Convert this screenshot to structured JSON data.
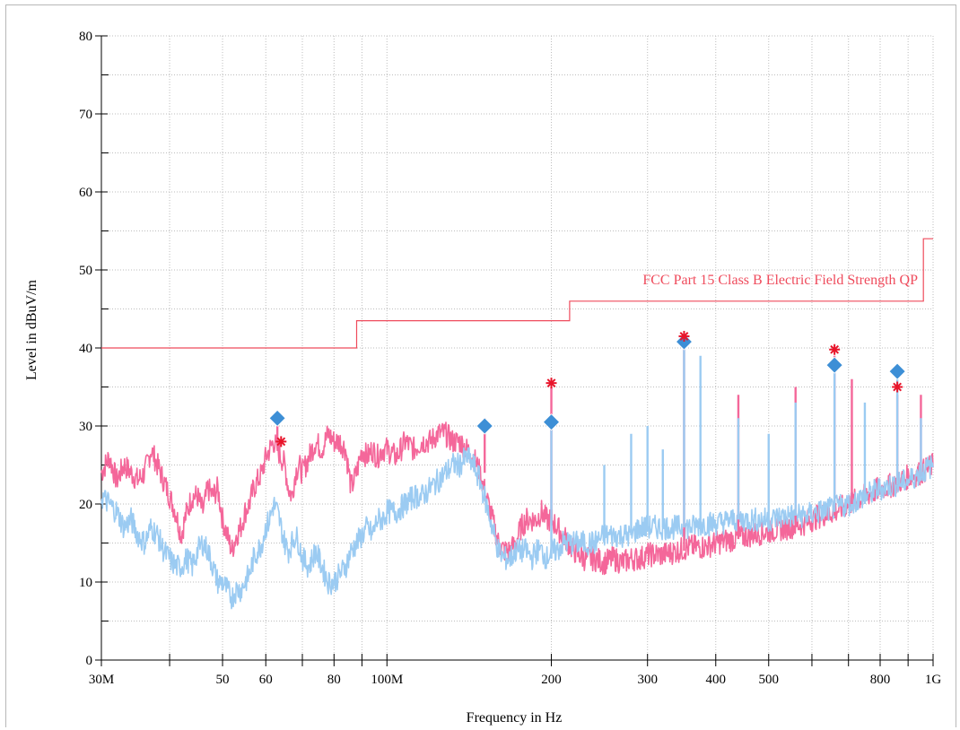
{
  "chart_data": {
    "type": "line",
    "xlabel": "Frequency in Hz",
    "ylabel": "Level in dBuV/m",
    "x_scale": "log",
    "xlim": [
      30000000,
      1000000000
    ],
    "ylim": [
      0,
      80
    ],
    "grid": true,
    "x_ticks": [
      {
        "value": 30000000,
        "label": "30M"
      },
      {
        "value": 50000000,
        "label": "50"
      },
      {
        "value": 60000000,
        "label": "60"
      },
      {
        "value": 80000000,
        "label": "80"
      },
      {
        "value": 100000000,
        "label": "100M"
      },
      {
        "value": 200000000,
        "label": "200"
      },
      {
        "value": 300000000,
        "label": "300"
      },
      {
        "value": 400000000,
        "label": "400"
      },
      {
        "value": 500000000,
        "label": "500"
      },
      {
        "value": 800000000,
        "label": "800"
      },
      {
        "value": 1000000000,
        "label": "1G"
      }
    ],
    "x_minor_ticks": [
      40000000,
      70000000,
      90000000,
      600000000,
      700000000,
      900000000
    ],
    "y_ticks": [
      0,
      10,
      20,
      30,
      40,
      50,
      60,
      70,
      80
    ],
    "limit_line": {
      "name": "FCC Part 15 Class B Electric Field Strength QP",
      "color": "#ef4b5c",
      "points": [
        [
          30000000,
          40
        ],
        [
          88000000,
          40
        ],
        [
          88000000,
          43.5
        ],
        [
          216000000,
          43.5
        ],
        [
          216000000,
          46
        ],
        [
          960000000,
          46
        ],
        [
          960000000,
          54
        ],
        [
          1000000000,
          54
        ]
      ]
    },
    "series": [
      {
        "color": "#f4679a",
        "points": [
          [
            30000000,
            24
          ],
          [
            31000000,
            26
          ],
          [
            32000000,
            23
          ],
          [
            33000000,
            25
          ],
          [
            34000000,
            24
          ],
          [
            35000000,
            23
          ],
          [
            36000000,
            24
          ],
          [
            37000000,
            27
          ],
          [
            38000000,
            25
          ],
          [
            39000000,
            23
          ],
          [
            40000000,
            21
          ],
          [
            41000000,
            19
          ],
          [
            42000000,
            16
          ],
          [
            43000000,
            19
          ],
          [
            44000000,
            21
          ],
          [
            45000000,
            21
          ],
          [
            46000000,
            19
          ],
          [
            47000000,
            22
          ],
          [
            48000000,
            21
          ],
          [
            49000000,
            22
          ],
          [
            50000000,
            18
          ],
          [
            51000000,
            16
          ],
          [
            52000000,
            14
          ],
          [
            53000000,
            16
          ],
          [
            54000000,
            17
          ],
          [
            55000000,
            19
          ],
          [
            56000000,
            20
          ],
          [
            57000000,
            22
          ],
          [
            58000000,
            23
          ],
          [
            59000000,
            24
          ],
          [
            60000000,
            26
          ],
          [
            61000000,
            27
          ],
          [
            62000000,
            28
          ],
          [
            63000000,
            27
          ],
          [
            64000000,
            26
          ],
          [
            65000000,
            25
          ],
          [
            66000000,
            22
          ],
          [
            67000000,
            21
          ],
          [
            68000000,
            24
          ],
          [
            69000000,
            25
          ],
          [
            70000000,
            24
          ],
          [
            72000000,
            26
          ],
          [
            74000000,
            28
          ],
          [
            76000000,
            27
          ],
          [
            78000000,
            29
          ],
          [
            80000000,
            28
          ],
          [
            82000000,
            28
          ],
          [
            84000000,
            27
          ],
          [
            86000000,
            22
          ],
          [
            88000000,
            24
          ],
          [
            90000000,
            27
          ],
          [
            92000000,
            26
          ],
          [
            94000000,
            27
          ],
          [
            96000000,
            26
          ],
          [
            98000000,
            27
          ],
          [
            100000000,
            27
          ],
          [
            104000000,
            26
          ],
          [
            108000000,
            28
          ],
          [
            112000000,
            27
          ],
          [
            116000000,
            28
          ],
          [
            120000000,
            28
          ],
          [
            124000000,
            29
          ],
          [
            128000000,
            29
          ],
          [
            132000000,
            28
          ],
          [
            136000000,
            28
          ],
          [
            140000000,
            27
          ],
          [
            144000000,
            26
          ],
          [
            148000000,
            24
          ],
          [
            152000000,
            21
          ],
          [
            156000000,
            18
          ],
          [
            160000000,
            15
          ],
          [
            164000000,
            14
          ],
          [
            168000000,
            14
          ],
          [
            172000000,
            15
          ],
          [
            176000000,
            17
          ],
          [
            180000000,
            18
          ],
          [
            184000000,
            18
          ],
          [
            188000000,
            18
          ],
          [
            192000000,
            19
          ],
          [
            196000000,
            18
          ],
          [
            200000000,
            18
          ],
          [
            205000000,
            17
          ],
          [
            210000000,
            16
          ],
          [
            215000000,
            15
          ],
          [
            220000000,
            14
          ],
          [
            230000000,
            13
          ],
          [
            240000000,
            13
          ],
          [
            250000000,
            12.5
          ],
          [
            260000000,
            13
          ],
          [
            270000000,
            12.5
          ],
          [
            280000000,
            13
          ],
          [
            290000000,
            13
          ],
          [
            300000000,
            13.5
          ],
          [
            320000000,
            13.5
          ],
          [
            340000000,
            14
          ],
          [
            360000000,
            14.5
          ],
          [
            380000000,
            14.5
          ],
          [
            400000000,
            15
          ],
          [
            430000000,
            15.5
          ],
          [
            460000000,
            16
          ],
          [
            500000000,
            16.5
          ],
          [
            540000000,
            17
          ],
          [
            580000000,
            17.5
          ],
          [
            620000000,
            18.5
          ],
          [
            660000000,
            19
          ],
          [
            700000000,
            20
          ],
          [
            750000000,
            21
          ],
          [
            800000000,
            22
          ],
          [
            850000000,
            22.5
          ],
          [
            900000000,
            23.5
          ],
          [
            950000000,
            24
          ],
          [
            1000000000,
            25
          ]
        ]
      },
      {
        "color": "#9bcbf2",
        "points": [
          [
            30000000,
            21
          ],
          [
            31000000,
            20
          ],
          [
            32000000,
            19
          ],
          [
            33000000,
            17
          ],
          [
            34000000,
            18
          ],
          [
            35000000,
            16
          ],
          [
            36000000,
            15
          ],
          [
            37000000,
            17
          ],
          [
            38000000,
            16
          ],
          [
            39000000,
            14
          ],
          [
            40000000,
            13
          ],
          [
            41000000,
            12
          ],
          [
            42000000,
            12
          ],
          [
            43000000,
            13
          ],
          [
            44000000,
            12
          ],
          [
            45000000,
            14
          ],
          [
            46000000,
            15
          ],
          [
            47000000,
            14
          ],
          [
            48000000,
            12
          ],
          [
            49000000,
            10
          ],
          [
            50000000,
            10
          ],
          [
            51000000,
            9
          ],
          [
            52000000,
            8
          ],
          [
            53000000,
            9
          ],
          [
            54000000,
            9
          ],
          [
            55000000,
            10
          ],
          [
            56000000,
            11
          ],
          [
            57000000,
            13
          ],
          [
            58000000,
            14
          ],
          [
            59000000,
            15
          ],
          [
            60000000,
            17
          ],
          [
            61000000,
            18
          ],
          [
            62000000,
            20
          ],
          [
            63000000,
            19
          ],
          [
            64000000,
            17
          ],
          [
            65000000,
            15
          ],
          [
            66000000,
            14
          ],
          [
            67000000,
            15
          ],
          [
            68000000,
            16
          ],
          [
            69000000,
            15
          ],
          [
            70000000,
            13
          ],
          [
            72000000,
            12
          ],
          [
            74000000,
            14
          ],
          [
            76000000,
            12
          ],
          [
            78000000,
            10
          ],
          [
            80000000,
            10
          ],
          [
            82000000,
            11
          ],
          [
            84000000,
            12
          ],
          [
            86000000,
            14
          ],
          [
            88000000,
            15
          ],
          [
            90000000,
            16
          ],
          [
            92000000,
            17
          ],
          [
            94000000,
            16
          ],
          [
            96000000,
            18
          ],
          [
            98000000,
            18
          ],
          [
            100000000,
            19
          ],
          [
            104000000,
            19
          ],
          [
            108000000,
            20
          ],
          [
            112000000,
            21
          ],
          [
            116000000,
            21
          ],
          [
            120000000,
            22
          ],
          [
            124000000,
            23
          ],
          [
            128000000,
            24
          ],
          [
            132000000,
            25
          ],
          [
            136000000,
            25
          ],
          [
            140000000,
            26
          ],
          [
            144000000,
            25
          ],
          [
            148000000,
            23
          ],
          [
            152000000,
            20
          ],
          [
            156000000,
            17
          ],
          [
            160000000,
            14
          ],
          [
            164000000,
            13
          ],
          [
            168000000,
            13
          ],
          [
            172000000,
            14
          ],
          [
            176000000,
            14
          ],
          [
            180000000,
            14
          ],
          [
            184000000,
            13
          ],
          [
            188000000,
            14
          ],
          [
            192000000,
            14
          ],
          [
            196000000,
            13
          ],
          [
            200000000,
            14
          ],
          [
            205000000,
            14
          ],
          [
            210000000,
            15
          ],
          [
            215000000,
            15
          ],
          [
            220000000,
            15
          ],
          [
            230000000,
            15
          ],
          [
            240000000,
            15
          ],
          [
            250000000,
            16
          ],
          [
            260000000,
            16
          ],
          [
            270000000,
            16
          ],
          [
            280000000,
            16
          ],
          [
            290000000,
            17
          ],
          [
            300000000,
            17
          ],
          [
            320000000,
            17
          ],
          [
            340000000,
            17
          ],
          [
            360000000,
            17
          ],
          [
            380000000,
            17.5
          ],
          [
            400000000,
            17.5
          ],
          [
            430000000,
            18
          ],
          [
            460000000,
            18
          ],
          [
            500000000,
            18
          ],
          [
            540000000,
            18.5
          ],
          [
            580000000,
            18.5
          ],
          [
            620000000,
            19
          ],
          [
            660000000,
            19.5
          ],
          [
            700000000,
            20
          ],
          [
            750000000,
            21
          ],
          [
            800000000,
            22
          ],
          [
            850000000,
            22.5
          ],
          [
            900000000,
            23
          ],
          [
            950000000,
            24
          ],
          [
            1000000000,
            25
          ]
        ]
      }
    ],
    "spikes": [
      {
        "x": 63000000,
        "y": 31,
        "color": "#f4679a"
      },
      {
        "x": 151000000,
        "y": 31,
        "color": "#f4679a"
      },
      {
        "x": 200000000,
        "y": 35,
        "color": "#f4679a"
      },
      {
        "x": 350000000,
        "y": 41,
        "color": "#f4679a"
      },
      {
        "x": 660000000,
        "y": 39,
        "color": "#f4679a"
      },
      {
        "x": 860000000,
        "y": 34,
        "color": "#f4679a"
      },
      {
        "x": 950000000,
        "y": 34,
        "color": "#f4679a"
      },
      {
        "x": 440000000,
        "y": 34,
        "color": "#f4679a"
      },
      {
        "x": 560000000,
        "y": 35,
        "color": "#f4679a"
      },
      {
        "x": 710000000,
        "y": 36,
        "color": "#f4679a"
      },
      {
        "x": 200000000,
        "y": 30,
        "color": "#9bcbf2"
      },
      {
        "x": 350000000,
        "y": 40,
        "color": "#9bcbf2"
      },
      {
        "x": 375000000,
        "y": 39,
        "color": "#9bcbf2"
      },
      {
        "x": 860000000,
        "y": 36,
        "color": "#9bcbf2"
      },
      {
        "x": 250000000,
        "y": 25,
        "color": "#9bcbf2"
      },
      {
        "x": 280000000,
        "y": 29,
        "color": "#9bcbf2"
      },
      {
        "x": 300000000,
        "y": 30,
        "color": "#9bcbf2"
      },
      {
        "x": 320000000,
        "y": 27,
        "color": "#9bcbf2"
      },
      {
        "x": 440000000,
        "y": 31,
        "color": "#9bcbf2"
      },
      {
        "x": 500000000,
        "y": 29,
        "color": "#9bcbf2"
      },
      {
        "x": 560000000,
        "y": 33,
        "color": "#9bcbf2"
      },
      {
        "x": 660000000,
        "y": 37,
        "color": "#9bcbf2"
      },
      {
        "x": 750000000,
        "y": 33,
        "color": "#9bcbf2"
      },
      {
        "x": 950000000,
        "y": 31,
        "color": "#9bcbf2"
      }
    ],
    "qp_markers": [
      {
        "x": 63000000,
        "y": 31
      },
      {
        "x": 151000000,
        "y": 30
      },
      {
        "x": 200000000,
        "y": 30.5
      },
      {
        "x": 350000000,
        "y": 40.8
      },
      {
        "x": 660000000,
        "y": 37.8
      },
      {
        "x": 860000000,
        "y": 37
      }
    ],
    "peak_markers": [
      {
        "x": 64000000,
        "y": 28
      },
      {
        "x": 200000000,
        "y": 35.5
      },
      {
        "x": 350000000,
        "y": 41.5
      },
      {
        "x": 660000000,
        "y": 39.8
      },
      {
        "x": 860000000,
        "y": 35
      }
    ],
    "marker_colors": {
      "qp": "#3d8fd6",
      "peak": "#e8152b"
    }
  }
}
